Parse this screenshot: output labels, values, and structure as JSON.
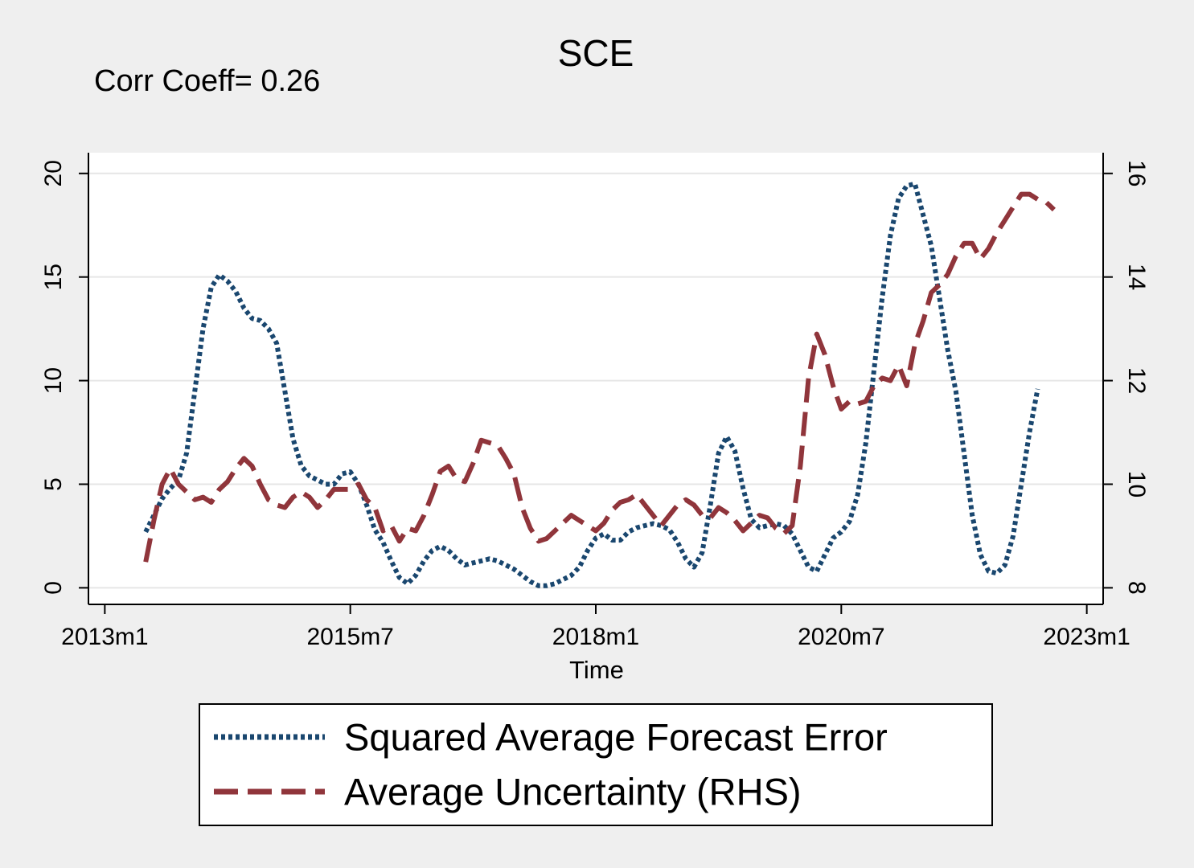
{
  "chart_data": {
    "type": "line",
    "title": "SCE",
    "annotation": "Corr Coeff= 0.26",
    "xlabel": "Time",
    "x": [
      "2013m6",
      "2013m7",
      "2013m8",
      "2013m9",
      "2013m10",
      "2013m11",
      "2013m12",
      "2014m1",
      "2014m2",
      "2014m3",
      "2014m4",
      "2014m5",
      "2014m6",
      "2014m7",
      "2014m8",
      "2014m9",
      "2014m10",
      "2014m11",
      "2014m12",
      "2015m1",
      "2015m2",
      "2015m3",
      "2015m4",
      "2015m5",
      "2015m6",
      "2015m7",
      "2015m8",
      "2015m9",
      "2015m10",
      "2015m11",
      "2015m12",
      "2016m1",
      "2016m2",
      "2016m3",
      "2016m4",
      "2016m5",
      "2016m6",
      "2016m7",
      "2016m8",
      "2016m9",
      "2016m10",
      "2016m11",
      "2016m12",
      "2017m1",
      "2017m2",
      "2017m3",
      "2017m4",
      "2017m5",
      "2017m6",
      "2017m7",
      "2017m8",
      "2017m9",
      "2017m10",
      "2017m11",
      "2017m12",
      "2018m1",
      "2018m2",
      "2018m3",
      "2018m4",
      "2018m5",
      "2018m6",
      "2018m7",
      "2018m8",
      "2018m9",
      "2018m10",
      "2018m11",
      "2018m12",
      "2019m1",
      "2019m2",
      "2019m3",
      "2019m4",
      "2019m5",
      "2019m6",
      "2019m7",
      "2019m8",
      "2019m9",
      "2019m10",
      "2019m11",
      "2019m12",
      "2020m1",
      "2020m2",
      "2020m3",
      "2020m4",
      "2020m5",
      "2020m6",
      "2020m7",
      "2020m8",
      "2020m9",
      "2020m10",
      "2020m11",
      "2020m12",
      "2021m1",
      "2021m2",
      "2021m3",
      "2021m4",
      "2021m5",
      "2021m6",
      "2021m7",
      "2021m8",
      "2021m9",
      "2021m10",
      "2021m11",
      "2021m12",
      "2022m1",
      "2022m2",
      "2022m3",
      "2022m4",
      "2022m5",
      "2022m6",
      "2022m7",
      "2022m8",
      "2022m9"
    ],
    "series": [
      {
        "name": "Squared Average Forecast Error",
        "color": "#1a476f",
        "dash": "dotted",
        "values": [
          2.7,
          3.5,
          4.3,
          4.8,
          5.2,
          6.5,
          9.5,
          12.5,
          14.5,
          15.1,
          14.8,
          14.3,
          13.5,
          13.0,
          12.9,
          12.5,
          11.8,
          9.5,
          7.2,
          5.9,
          5.4,
          5.2,
          5.0,
          5.0,
          5.5,
          5.6,
          5.0,
          4.0,
          2.8,
          2.2,
          1.3,
          0.5,
          0.2,
          0.6,
          1.3,
          1.8,
          2.0,
          1.8,
          1.4,
          1.1,
          1.2,
          1.3,
          1.4,
          1.3,
          1.1,
          0.9,
          0.6,
          0.3,
          0.1,
          0.1,
          0.2,
          0.4,
          0.6,
          1.0,
          1.8,
          2.4,
          2.6,
          2.3,
          2.3,
          2.7,
          2.9,
          3.0,
          3.1,
          3.0,
          2.8,
          2.2,
          1.4,
          1.0,
          1.7,
          4.0,
          6.5,
          7.3,
          6.6,
          4.8,
          3.3,
          2.9,
          3.0,
          3.1,
          3.0,
          2.6,
          1.8,
          1.0,
          0.8,
          1.6,
          2.4,
          2.7,
          3.2,
          4.5,
          7.0,
          10.5,
          14.0,
          17.0,
          18.8,
          19.4,
          19.5,
          18.0,
          16.5,
          14.0,
          11.5,
          9.5,
          6.5,
          3.5,
          1.6,
          0.8,
          0.7,
          1.1,
          2.5,
          5.0,
          7.5,
          9.6,
          null,
          null
        ]
      },
      {
        "name": "Average Uncertainty (RHS)",
        "color": "#90353b",
        "dash": "dashed",
        "axis": "y2",
        "values": [
          8.5,
          9.3,
          10.0,
          10.3,
          10.0,
          9.85,
          9.7,
          9.75,
          9.65,
          9.9,
          10.05,
          10.3,
          10.5,
          10.35,
          10.0,
          9.7,
          9.6,
          9.55,
          9.75,
          9.85,
          9.75,
          9.55,
          9.7,
          9.9,
          9.9,
          9.9,
          10.0,
          9.7,
          9.55,
          9.1,
          9.2,
          8.9,
          9.15,
          9.1,
          9.4,
          9.8,
          10.25,
          10.35,
          10.1,
          10.05,
          10.4,
          10.85,
          10.8,
          10.75,
          10.5,
          10.2,
          9.55,
          9.15,
          8.9,
          8.95,
          9.1,
          9.25,
          9.4,
          9.3,
          9.2,
          9.1,
          9.25,
          9.5,
          9.65,
          9.7,
          9.8,
          9.6,
          9.4,
          9.2,
          9.4,
          9.6,
          9.7,
          9.6,
          9.4,
          9.35,
          9.55,
          9.45,
          9.3,
          9.1,
          9.25,
          9.4,
          9.35,
          9.15,
          9.05,
          9.2,
          10.35,
          12.05,
          12.9,
          12.5,
          11.9,
          11.45,
          11.6,
          11.55,
          11.6,
          11.9,
          12.05,
          12.0,
          12.3,
          11.9,
          12.7,
          13.15,
          13.7,
          13.85,
          14.05,
          14.4,
          14.65,
          14.65,
          14.35,
          14.55,
          14.85,
          15.1,
          15.35,
          15.6,
          15.6,
          15.5,
          15.45,
          15.3
        ]
      }
    ],
    "xlim": [
      "2012m11",
      "2023m3"
    ],
    "xticks": [
      "2013m1",
      "2015m7",
      "2018m1",
      "2020m7",
      "2023m1"
    ],
    "ylim": [
      -0.8,
      21
    ],
    "yticks": [
      0,
      5,
      10,
      15,
      20
    ],
    "y2lim": [
      7.68,
      16.4
    ],
    "y2ticks": [
      8,
      10,
      12,
      14,
      16
    ],
    "grid": true
  }
}
